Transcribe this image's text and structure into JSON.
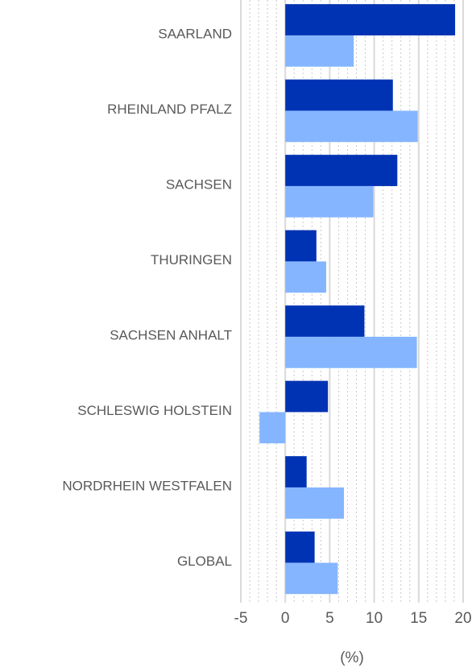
{
  "chart_data": {
    "type": "barh",
    "categories": [
      "SAARLAND",
      "RHEINLAND PFALZ",
      "SACHSEN",
      "THURINGEN",
      "SACHSEN ANHALT",
      "SCHLESWIG HOLSTEIN",
      "NORDRHEIN WESTFALEN",
      "GLOBAL"
    ],
    "series": [
      {
        "color": "#0033b4",
        "values": [
          19.1,
          12.1,
          12.6,
          3.5,
          8.9,
          4.8,
          2.4,
          3.3
        ]
      },
      {
        "color": "#85b5ff",
        "values": [
          7.7,
          14.9,
          9.9,
          4.6,
          14.8,
          -2.9,
          6.6,
          5.9
        ]
      }
    ],
    "xlim": [
      -5,
      20
    ],
    "xticks": [
      -5,
      0,
      5,
      10,
      15,
      20
    ],
    "xlabel": "(%)",
    "grid": true
  }
}
